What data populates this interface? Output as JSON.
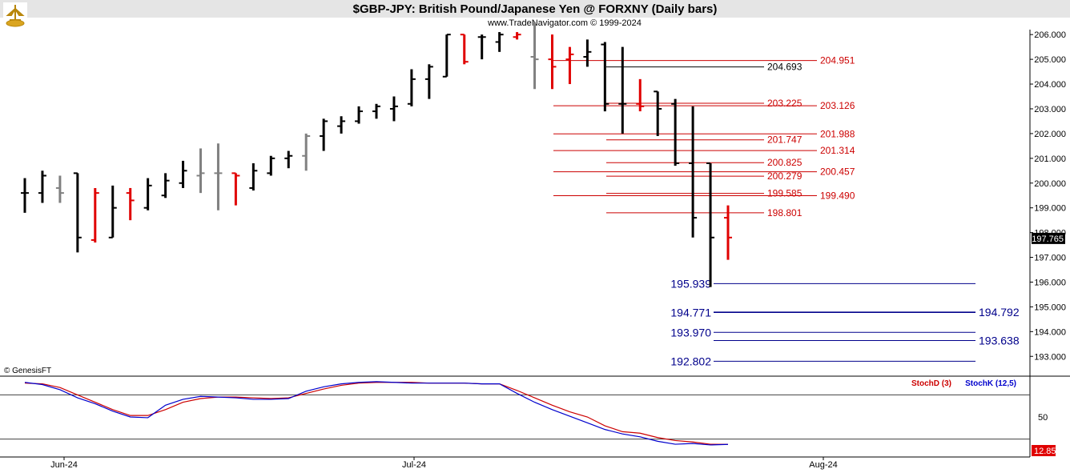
{
  "title": "$GBP-JPY:  British Pound/Japanese Yen @ FORXNY  (Daily bars)",
  "subtitle": "www.TradeNavigator.com © 1999-2024",
  "copyright": "© GenesisFT",
  "colors": {
    "up": "#000000",
    "down": "#e00000",
    "neutral": "#808080",
    "support": "#00008b",
    "resistance": "#cc0000",
    "stochD": "#cc0000",
    "stochK": "#0000cc"
  },
  "chart_data": [
    {
      "type": "ohlc",
      "x_ticks": [
        "Jun-24",
        "Jul-24",
        "Aug-24"
      ],
      "y_ticks": [
        "193.000",
        "194.000",
        "195.000",
        "196.000",
        "197.000",
        "198.000",
        "199.000",
        "200.000",
        "201.000",
        "202.000",
        "203.000",
        "204.000",
        "205.000",
        "206.000"
      ],
      "ylim": [
        192.2,
        206.2
      ],
      "last_price": "197.765",
      "bars": [
        {
          "o": 199.6,
          "h": 200.2,
          "l": 198.8,
          "c": 199.6,
          "col": "up"
        },
        {
          "o": 199.6,
          "h": 200.5,
          "l": 199.2,
          "c": 200.3,
          "col": "up"
        },
        {
          "o": 199.8,
          "h": 200.3,
          "l": 199.2,
          "c": 199.6,
          "col": "neutral"
        },
        {
          "o": 200.4,
          "h": 200.4,
          "l": 197.2,
          "c": 197.8,
          "col": "up"
        },
        {
          "o": 197.7,
          "h": 199.8,
          "l": 197.6,
          "c": 199.6,
          "col": "down"
        },
        {
          "o": 197.8,
          "h": 199.9,
          "l": 197.8,
          "c": 199.0,
          "col": "up"
        },
        {
          "o": 199.6,
          "h": 199.8,
          "l": 198.5,
          "c": 199.3,
          "col": "down"
        },
        {
          "o": 199.0,
          "h": 200.2,
          "l": 198.9,
          "c": 199.9,
          "col": "up"
        },
        {
          "o": 199.5,
          "h": 200.4,
          "l": 199.4,
          "c": 200.1,
          "col": "up"
        },
        {
          "o": 200.0,
          "h": 200.9,
          "l": 199.8,
          "c": 200.5,
          "col": "up"
        },
        {
          "o": 200.3,
          "h": 201.4,
          "l": 199.6,
          "c": 200.4,
          "col": "neutral"
        },
        {
          "o": 200.4,
          "h": 201.6,
          "l": 198.9,
          "c": 200.4,
          "col": "neutral"
        },
        {
          "o": 200.4,
          "h": 200.4,
          "l": 199.1,
          "c": 200.3,
          "col": "down"
        },
        {
          "o": 199.8,
          "h": 200.8,
          "l": 199.7,
          "c": 200.5,
          "col": "up"
        },
        {
          "o": 200.4,
          "h": 201.1,
          "l": 200.3,
          "c": 201.0,
          "col": "up"
        },
        {
          "o": 201.0,
          "h": 201.3,
          "l": 200.6,
          "c": 201.1,
          "col": "up"
        },
        {
          "o": 201.1,
          "h": 202.0,
          "l": 200.5,
          "c": 201.9,
          "col": "neutral"
        },
        {
          "o": 201.9,
          "h": 202.6,
          "l": 201.3,
          "c": 202.5,
          "col": "up"
        },
        {
          "o": 202.3,
          "h": 202.7,
          "l": 202.0,
          "c": 202.5,
          "col": "up"
        },
        {
          "o": 202.5,
          "h": 203.1,
          "l": 202.4,
          "c": 202.9,
          "col": "up"
        },
        {
          "o": 202.9,
          "h": 203.2,
          "l": 202.6,
          "c": 203.1,
          "col": "up"
        },
        {
          "o": 203.0,
          "h": 203.5,
          "l": 202.5,
          "c": 203.1,
          "col": "up"
        },
        {
          "o": 203.2,
          "h": 204.6,
          "l": 203.1,
          "c": 204.2,
          "col": "up"
        },
        {
          "o": 204.2,
          "h": 204.8,
          "l": 203.4,
          "c": 204.7,
          "col": "up"
        },
        {
          "o": 204.3,
          "h": 206.0,
          "l": 204.3,
          "c": 206.0,
          "col": "up"
        },
        {
          "o": 206.0,
          "h": 206.0,
          "l": 204.8,
          "c": 204.9,
          "col": "down"
        },
        {
          "o": 205.9,
          "h": 206.0,
          "l": 205.0,
          "c": 205.9,
          "col": "up"
        },
        {
          "o": 205.7,
          "h": 206.1,
          "l": 205.3,
          "c": 206.0,
          "col": "up"
        },
        {
          "o": 205.9,
          "h": 206.1,
          "l": 205.8,
          "c": 206.0,
          "col": "down"
        },
        {
          "o": 205.1,
          "h": 206.5,
          "l": 203.8,
          "c": 205.0,
          "col": "neutral"
        },
        {
          "o": 205.0,
          "h": 206.0,
          "l": 203.8,
          "c": 204.7,
          "col": "down"
        },
        {
          "o": 205.0,
          "h": 205.5,
          "l": 204.0,
          "c": 205.2,
          "col": "down"
        },
        {
          "o": 205.1,
          "h": 205.8,
          "l": 204.7,
          "c": 205.3,
          "col": "up"
        },
        {
          "o": 205.6,
          "h": 205.7,
          "l": 202.9,
          "c": 203.2,
          "col": "up"
        },
        {
          "o": 203.2,
          "h": 205.5,
          "l": 202.0,
          "c": 203.2,
          "col": "up"
        },
        {
          "o": 203.2,
          "h": 204.2,
          "l": 202.9,
          "c": 203.1,
          "col": "down"
        },
        {
          "o": 203.7,
          "h": 203.7,
          "l": 201.9,
          "c": 203.0,
          "col": "up"
        },
        {
          "o": 203.2,
          "h": 203.4,
          "l": 200.7,
          "c": 200.8,
          "col": "up"
        },
        {
          "o": 200.8,
          "h": 203.1,
          "l": 197.8,
          "c": 198.6,
          "col": "up"
        },
        {
          "o": 200.8,
          "h": 200.8,
          "l": 195.8,
          "c": 197.8,
          "col": "up"
        },
        {
          "o": 198.6,
          "h": 199.1,
          "l": 196.9,
          "c": 197.8,
          "col": "down"
        }
      ],
      "levels": [
        {
          "value": "204.951",
          "y": 204.951,
          "side": "right",
          "col": "resistance"
        },
        {
          "value": "204.693",
          "y": 204.693,
          "side": "mid",
          "col": "black"
        },
        {
          "value": "203.225",
          "y": 203.225,
          "side": "mid",
          "col": "resistance"
        },
        {
          "value": "203.126",
          "y": 203.126,
          "side": "right",
          "col": "resistance"
        },
        {
          "value": "201.988",
          "y": 201.988,
          "side": "right",
          "col": "resistance"
        },
        {
          "value": "201.747",
          "y": 201.747,
          "side": "mid",
          "col": "resistance"
        },
        {
          "value": "201.314",
          "y": 201.314,
          "side": "right",
          "col": "resistance"
        },
        {
          "value": "200.825",
          "y": 200.825,
          "side": "mid",
          "col": "resistance"
        },
        {
          "value": "200.457",
          "y": 200.457,
          "side": "right",
          "col": "resistance"
        },
        {
          "value": "200.279",
          "y": 200.279,
          "side": "mid",
          "col": "resistance"
        },
        {
          "value": "199.585",
          "y": 199.585,
          "side": "mid",
          "col": "resistance"
        },
        {
          "value": "199.490",
          "y": 199.49,
          "side": "right",
          "col": "resistance"
        },
        {
          "value": "198.801",
          "y": 198.801,
          "side": "mid",
          "col": "resistance"
        },
        {
          "value": "195.939",
          "y": 195.939,
          "side": "left",
          "col": "support"
        },
        {
          "value": "194.771",
          "y": 194.771,
          "side": "left",
          "col": "support"
        },
        {
          "value": "194.792",
          "y": 194.792,
          "side": "farright",
          "col": "support"
        },
        {
          "value": "193.970",
          "y": 193.97,
          "side": "left",
          "col": "support"
        },
        {
          "value": "193.638",
          "y": 193.638,
          "side": "farright",
          "col": "support"
        },
        {
          "value": "192.802",
          "y": 192.802,
          "side": "left",
          "col": "support"
        }
      ]
    },
    {
      "type": "line",
      "legend": [
        "StochD (3)",
        "StochK (12,5)"
      ],
      "y_ticks": [
        "50"
      ],
      "ylim": [
        0,
        100
      ],
      "ref_lines": [
        80,
        20
      ],
      "last_value": "12.85",
      "series": [
        {
          "name": "StochD (3)",
          "values": [
            96,
            95,
            90,
            80,
            70,
            60,
            52,
            52,
            60,
            70,
            75,
            77,
            77,
            76,
            75,
            76,
            82,
            88,
            93,
            96,
            97,
            97,
            97,
            96,
            96,
            96,
            95,
            95,
            86,
            76,
            66,
            57,
            50,
            38,
            30,
            28,
            22,
            18,
            16,
            13,
            12.8
          ]
        },
        {
          "name": "StochK (12,5)",
          "values": [
            97,
            94,
            87,
            76,
            68,
            58,
            50,
            49,
            66,
            74,
            78,
            77,
            76,
            74,
            74,
            75,
            85,
            91,
            95,
            97,
            98,
            97,
            96,
            96,
            96,
            96,
            95,
            95,
            82,
            70,
            60,
            51,
            42,
            33,
            27,
            23,
            17,
            13,
            14,
            12,
            12.8
          ]
        }
      ]
    }
  ]
}
